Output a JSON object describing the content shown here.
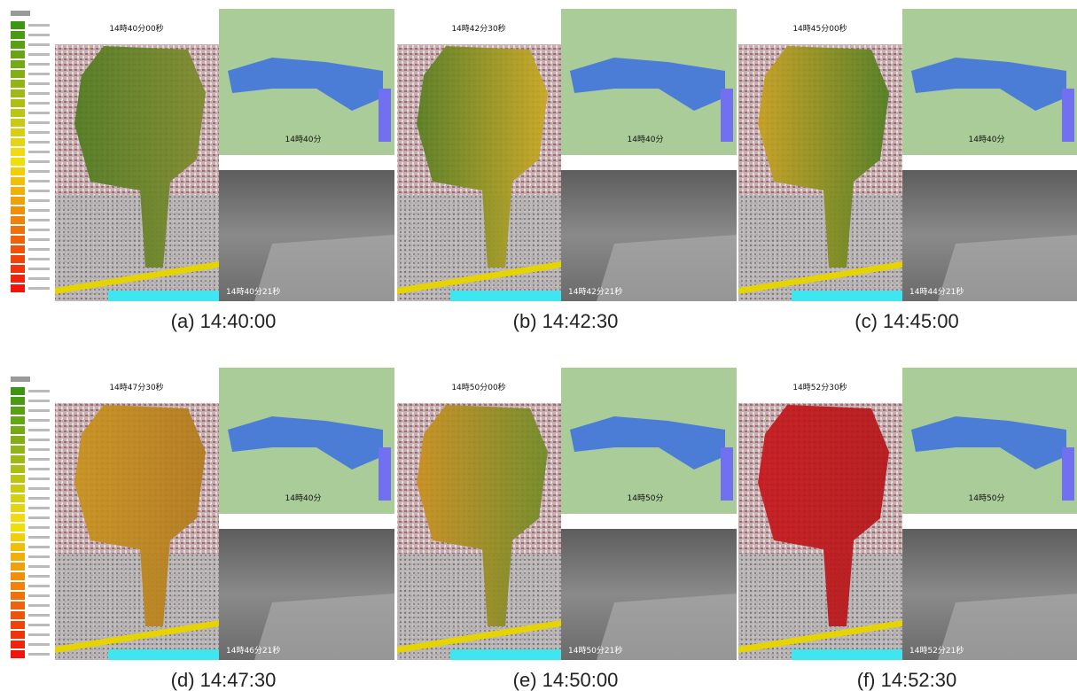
{
  "panels": [
    {
      "caption": "(a) 14:40:00",
      "sim_time": "14時40分00秒",
      "radar_time": "14時40分",
      "camera_time": "14時40分21秒"
    },
    {
      "caption": "(b) 14:42:30",
      "sim_time": "14時42分30秒",
      "radar_time": "14時40分",
      "camera_time": "14時42分21秒"
    },
    {
      "caption": "(c) 14:45:00",
      "sim_time": "14時45分00秒",
      "radar_time": "14時40分",
      "camera_time": "14時44分21秒"
    },
    {
      "caption": "(d) 14:47:30",
      "sim_time": "14時47分30秒",
      "radar_time": "14時40分",
      "camera_time": "14時46分21秒"
    },
    {
      "caption": "(e) 14:50:00",
      "sim_time": "14時50分00秒",
      "radar_time": "14時50分",
      "camera_time": "14時50分21秒"
    },
    {
      "caption": "(f) 14:52:30",
      "sim_time": "14時52分30秒",
      "radar_time": "14時50分",
      "camera_time": "14時52分21秒"
    }
  ]
}
